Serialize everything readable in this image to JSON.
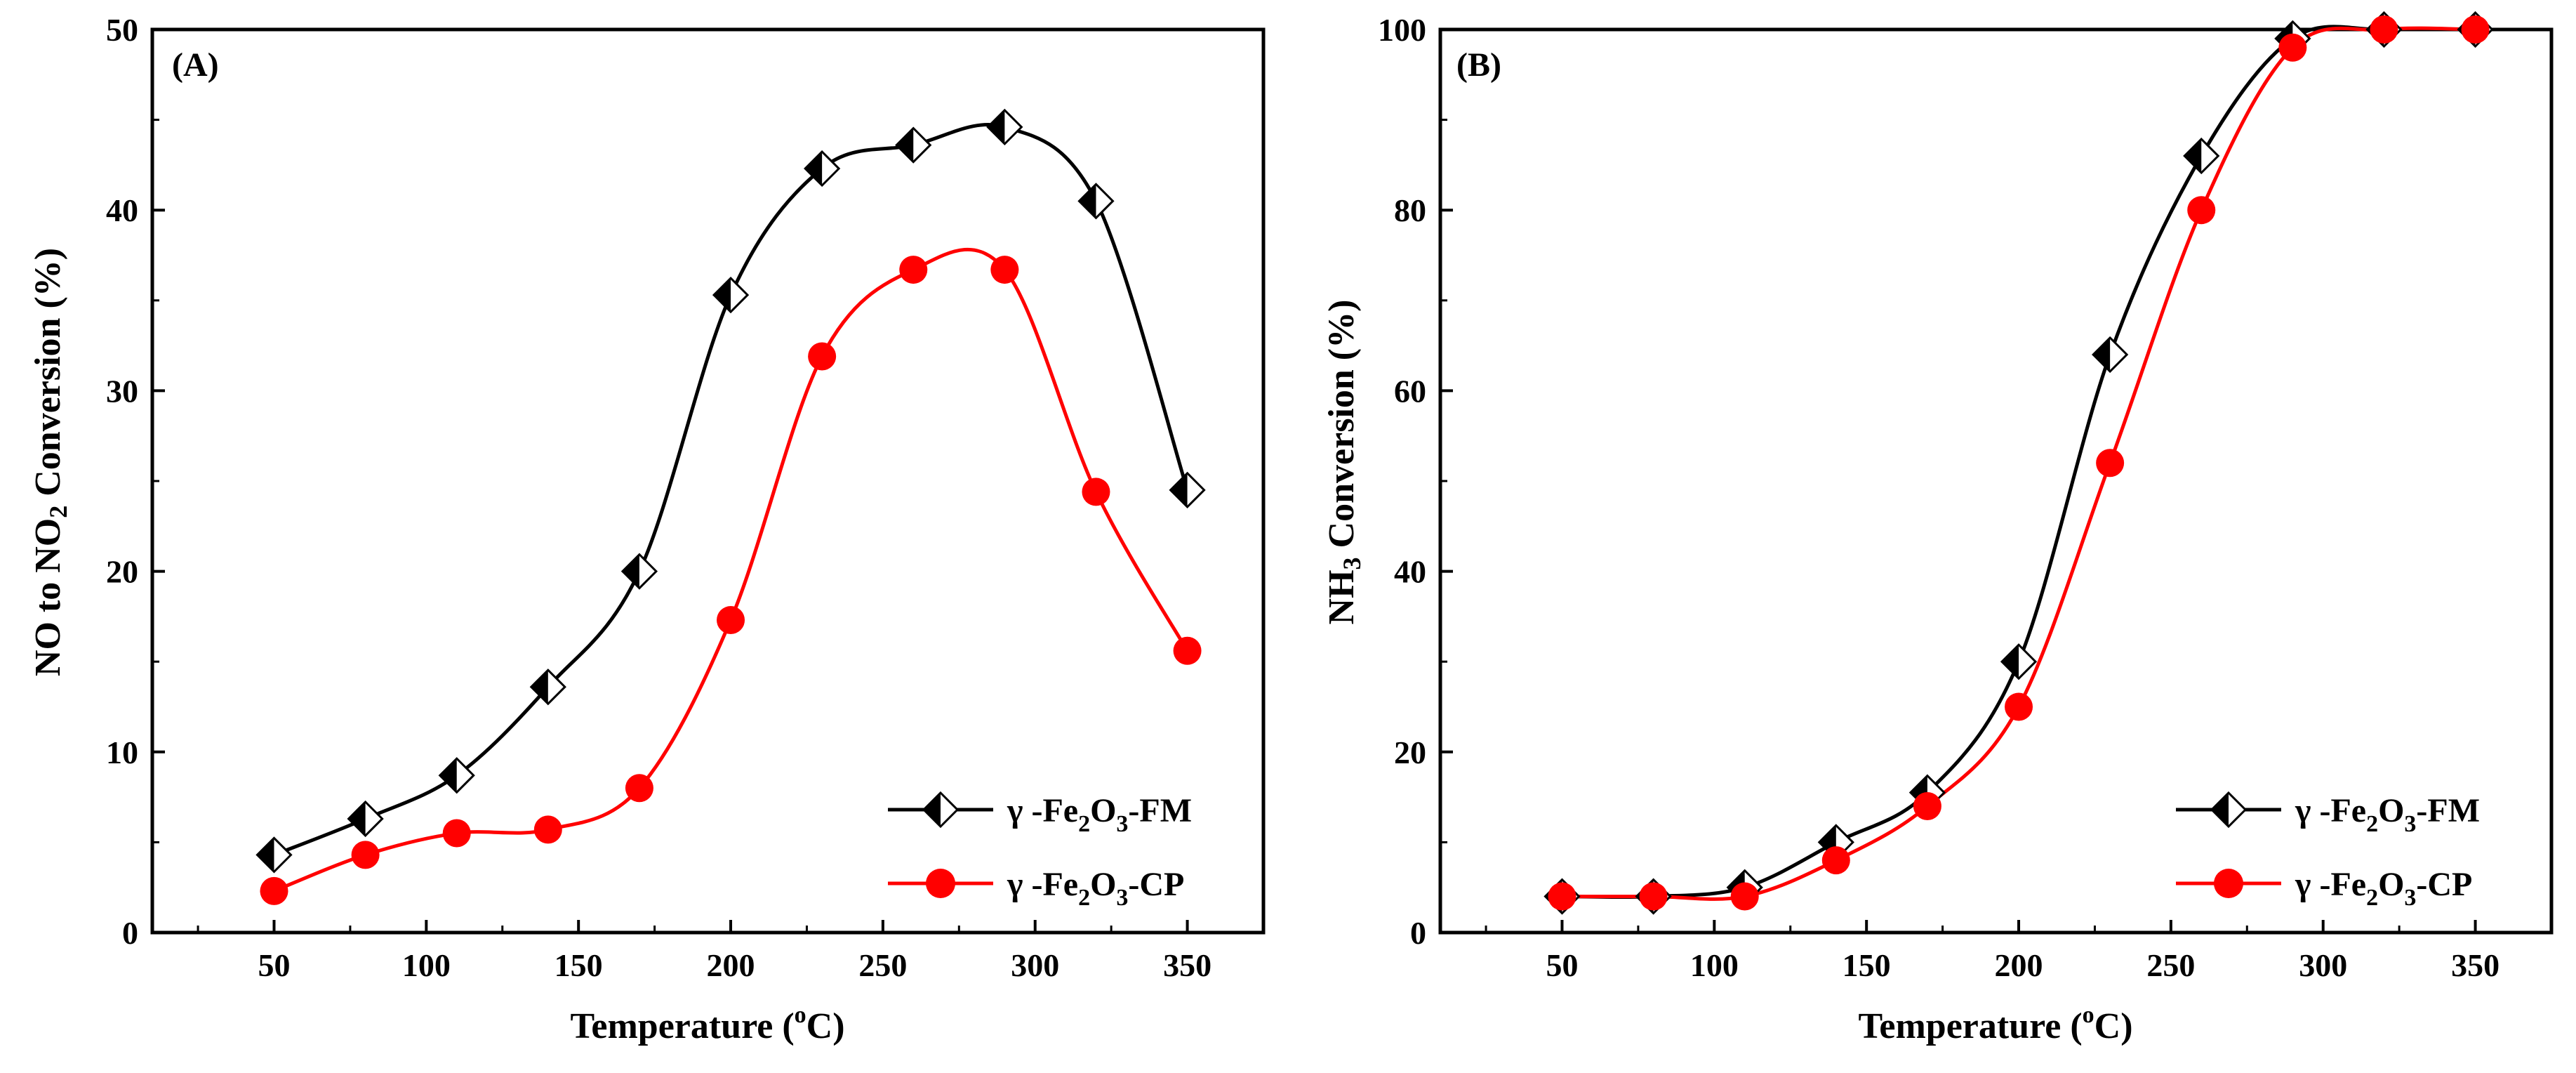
{
  "figure": {
    "panels": [
      {
        "label": "(A)",
        "xlabel_pre": "Temperature (",
        "xlabel_sup": "o",
        "xlabel_post": "C)",
        "ylabel_pre": "NO to NO",
        "ylabel_sub": "2",
        "ylabel_post": " Conversion (%)",
        "legend": [
          {
            "prefix": "γ -Fe",
            "s1": "2",
            "mid": "O",
            "s2": "3",
            "suffix": "-FM"
          },
          {
            "prefix": "γ -Fe",
            "s1": "2",
            "mid": "O",
            "s2": "3",
            "suffix": "-CP"
          }
        ]
      },
      {
        "label": "(B)",
        "xlabel_pre": "Temperature (",
        "xlabel_sup": "o",
        "xlabel_post": "C)",
        "ylabel_pre": "NH",
        "ylabel_sub": "3",
        "ylabel_post": " Conversion (%)",
        "legend": [
          {
            "prefix": "γ -Fe",
            "s1": "2",
            "mid": "O",
            "s2": "3",
            "suffix": "-FM"
          },
          {
            "prefix": "γ -Fe",
            "s1": "2",
            "mid": "O",
            "s2": "3",
            "suffix": "-CP"
          }
        ]
      }
    ]
  },
  "chart_data": [
    {
      "type": "line",
      "panel": "(A)",
      "title": "",
      "xlabel": "Temperature (oC)",
      "ylabel": "NO to NO2 Conversion (%)",
      "xlim": [
        10,
        375
      ],
      "ylim": [
        0,
        50
      ],
      "xticks": [
        50,
        100,
        150,
        200,
        250,
        300,
        350
      ],
      "yticks": [
        0,
        10,
        20,
        30,
        40,
        50
      ],
      "legend_position": "bottom-right",
      "series": [
        {
          "name": "γ-Fe2O3-FM",
          "color": "#000000",
          "marker": "half-filled-diamond",
          "x": [
            50,
            80,
            110,
            140,
            170,
            200,
            230,
            260,
            290,
            320,
            350
          ],
          "y": [
            4.3,
            6.3,
            8.7,
            13.6,
            20.0,
            35.3,
            42.3,
            43.6,
            44.6,
            40.5,
            24.5
          ]
        },
        {
          "name": "γ-Fe2O3-CP",
          "color": "#ff0000",
          "marker": "circle",
          "x": [
            50,
            80,
            110,
            140,
            170,
            200,
            230,
            260,
            290,
            320,
            350
          ],
          "y": [
            2.3,
            4.3,
            5.5,
            5.7,
            8.0,
            17.3,
            31.9,
            36.7,
            36.7,
            24.4,
            15.6
          ]
        }
      ]
    },
    {
      "type": "line",
      "panel": "(B)",
      "title": "",
      "xlabel": "Temperature (oC)",
      "ylabel": "NH3 Conversion (%)",
      "xlim": [
        10,
        375
      ],
      "ylim": [
        0,
        100
      ],
      "xticks": [
        50,
        100,
        150,
        200,
        250,
        300,
        350
      ],
      "yticks": [
        0,
        20,
        40,
        60,
        80,
        100
      ],
      "legend_position": "bottom-right",
      "series": [
        {
          "name": "γ-Fe2O3-FM",
          "color": "#000000",
          "marker": "half-filled-diamond",
          "x": [
            50,
            80,
            110,
            140,
            170,
            200,
            230,
            260,
            290,
            320,
            350
          ],
          "y": [
            4,
            4,
            5,
            10,
            15.5,
            30,
            64,
            86,
            99,
            100,
            100
          ]
        },
        {
          "name": "γ-Fe2O3-CP",
          "color": "#ff0000",
          "marker": "circle",
          "x": [
            50,
            80,
            110,
            140,
            170,
            200,
            230,
            260,
            290,
            320,
            350
          ],
          "y": [
            4,
            4,
            4,
            8,
            14,
            25,
            52,
            80,
            98,
            100,
            100
          ]
        }
      ]
    }
  ]
}
